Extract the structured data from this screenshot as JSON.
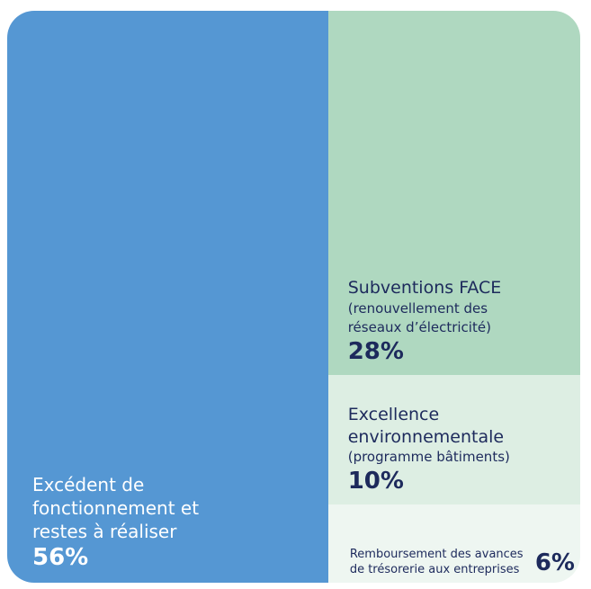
{
  "chart_data": {
    "type": "treemap",
    "categories": [
      "Excédent de fonctionnement et restes à réaliser",
      "Subventions FACE (renouvellement des réseaux d’électricité)",
      "Excellence environnementale (programme bâtiments)",
      "Remboursement des avances de trésorerie aux entreprises"
    ],
    "values": [
      56,
      28,
      10,
      6
    ],
    "value_labels": [
      "56%",
      "28%",
      "10%",
      "6%"
    ],
    "colors": [
      "#5597d3",
      "#afd8c0",
      "#ddeee3",
      "#eef6f1"
    ]
  }
}
